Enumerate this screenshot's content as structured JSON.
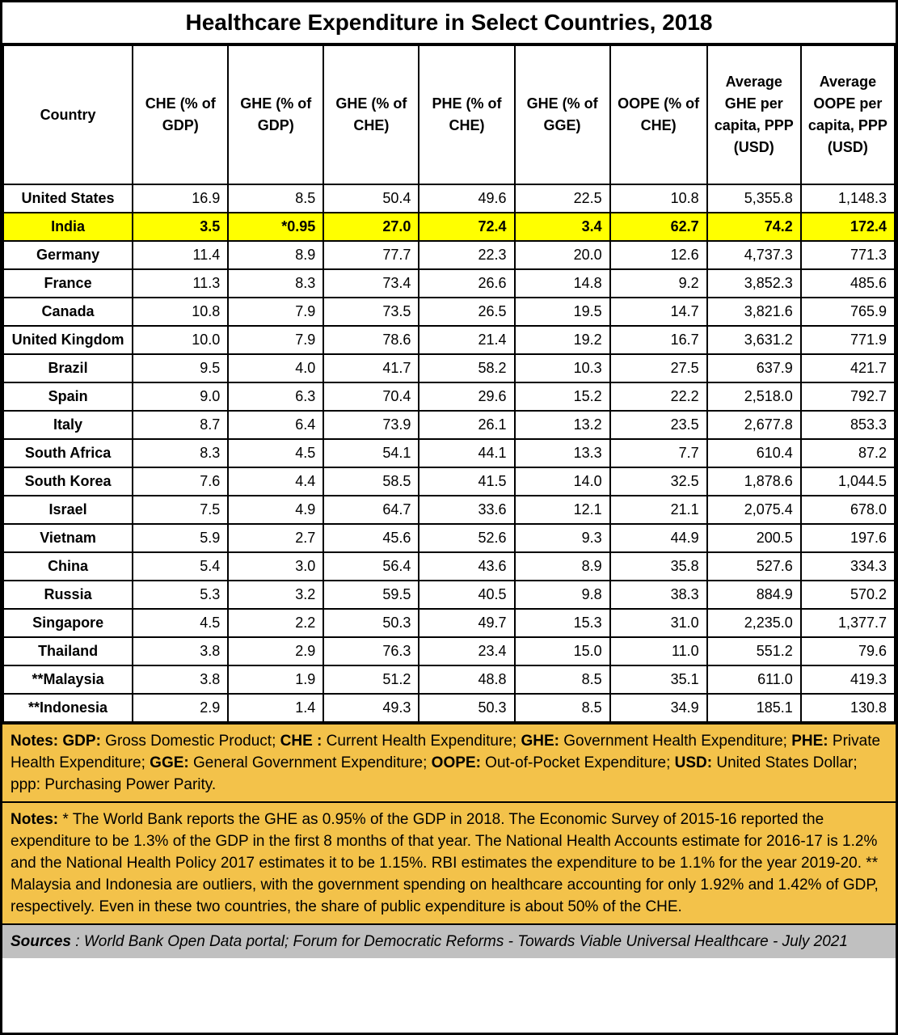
{
  "title": "Healthcare Expenditure in Select Countries, 2018",
  "colors": {
    "highlight_bg": "#FFFF00",
    "notes_bg": "#F3C24A",
    "sources_bg": "#C0C0C0",
    "border": "#000000"
  },
  "chart_data": {
    "type": "table",
    "title": "Healthcare Expenditure in Select Countries, 2018",
    "columns": [
      "Country",
      "CHE (% of GDP)",
      "GHE (% of GDP)",
      "GHE (% of CHE)",
      "PHE (% of CHE)",
      "GHE (% of GGE)",
      "OOPE (% of CHE)",
      "Average GHE per capita, PPP (USD)",
      "Average OOPE per capita, PPP (USD)"
    ],
    "rows": [
      {
        "country": "United States",
        "highlight": false,
        "values": [
          "16.9",
          "8.5",
          "50.4",
          "49.6",
          "22.5",
          "10.8",
          "5,355.8",
          "1,148.3"
        ]
      },
      {
        "country": "India",
        "highlight": true,
        "values": [
          "3.5",
          "*0.95",
          "27.0",
          "72.4",
          "3.4",
          "62.7",
          "74.2",
          "172.4"
        ]
      },
      {
        "country": "Germany",
        "highlight": false,
        "values": [
          "11.4",
          "8.9",
          "77.7",
          "22.3",
          "20.0",
          "12.6",
          "4,737.3",
          "771.3"
        ]
      },
      {
        "country": "France",
        "highlight": false,
        "values": [
          "11.3",
          "8.3",
          "73.4",
          "26.6",
          "14.8",
          "9.2",
          "3,852.3",
          "485.6"
        ]
      },
      {
        "country": "Canada",
        "highlight": false,
        "values": [
          "10.8",
          "7.9",
          "73.5",
          "26.5",
          "19.5",
          "14.7",
          "3,821.6",
          "765.9"
        ]
      },
      {
        "country": "United Kingdom",
        "highlight": false,
        "values": [
          "10.0",
          "7.9",
          "78.6",
          "21.4",
          "19.2",
          "16.7",
          "3,631.2",
          "771.9"
        ]
      },
      {
        "country": "Brazil",
        "highlight": false,
        "values": [
          "9.5",
          "4.0",
          "41.7",
          "58.2",
          "10.3",
          "27.5",
          "637.9",
          "421.7"
        ]
      },
      {
        "country": "Spain",
        "highlight": false,
        "values": [
          "9.0",
          "6.3",
          "70.4",
          "29.6",
          "15.2",
          "22.2",
          "2,518.0",
          "792.7"
        ]
      },
      {
        "country": "Italy",
        "highlight": false,
        "values": [
          "8.7",
          "6.4",
          "73.9",
          "26.1",
          "13.2",
          "23.5",
          "2,677.8",
          "853.3"
        ]
      },
      {
        "country": "South Africa",
        "highlight": false,
        "values": [
          "8.3",
          "4.5",
          "54.1",
          "44.1",
          "13.3",
          "7.7",
          "610.4",
          "87.2"
        ]
      },
      {
        "country": "South Korea",
        "highlight": false,
        "values": [
          "7.6",
          "4.4",
          "58.5",
          "41.5",
          "14.0",
          "32.5",
          "1,878.6",
          "1,044.5"
        ]
      },
      {
        "country": "Israel",
        "highlight": false,
        "values": [
          "7.5",
          "4.9",
          "64.7",
          "33.6",
          "12.1",
          "21.1",
          "2,075.4",
          "678.0"
        ]
      },
      {
        "country": "Vietnam",
        "highlight": false,
        "values": [
          "5.9",
          "2.7",
          "45.6",
          "52.6",
          "9.3",
          "44.9",
          "200.5",
          "197.6"
        ]
      },
      {
        "country": "China",
        "highlight": false,
        "values": [
          "5.4",
          "3.0",
          "56.4",
          "43.6",
          "8.9",
          "35.8",
          "527.6",
          "334.3"
        ]
      },
      {
        "country": "Russia",
        "highlight": false,
        "values": [
          "5.3",
          "3.2",
          "59.5",
          "40.5",
          "9.8",
          "38.3",
          "884.9",
          "570.2"
        ]
      },
      {
        "country": "Singapore",
        "highlight": false,
        "values": [
          "4.5",
          "2.2",
          "50.3",
          "49.7",
          "15.3",
          "31.0",
          "2,235.0",
          "1,377.7"
        ]
      },
      {
        "country": "Thailand",
        "highlight": false,
        "values": [
          "3.8",
          "2.9",
          "76.3",
          "23.4",
          "15.0",
          "11.0",
          "551.2",
          "79.6"
        ]
      },
      {
        "country": "**Malaysia",
        "highlight": false,
        "values": [
          "3.8",
          "1.9",
          "51.2",
          "48.8",
          "8.5",
          "35.1",
          "611.0",
          "419.3"
        ]
      },
      {
        "country": "**Indonesia",
        "highlight": false,
        "values": [
          "2.9",
          "1.4",
          "49.3",
          "50.3",
          "8.5",
          "34.9",
          "185.1",
          "130.8"
        ]
      }
    ]
  },
  "notes_definitions": {
    "segments": [
      {
        "b": true,
        "t": "Notes: "
      },
      {
        "b": true,
        "t": "GDP:"
      },
      {
        "b": false,
        "t": " Gross Domestic Product; "
      },
      {
        "b": true,
        "t": "CHE :"
      },
      {
        "b": false,
        "t": " Current Health Expenditure; "
      },
      {
        "b": true,
        "t": "GHE:"
      },
      {
        "b": false,
        "t": " Government Health Expenditure; "
      },
      {
        "b": true,
        "t": "PHE:"
      },
      {
        "b": false,
        "t": " Private Health Expenditure; "
      },
      {
        "b": true,
        "t": "GGE:"
      },
      {
        "b": false,
        "t": " General Government Expenditure; "
      },
      {
        "b": true,
        "t": "OOPE:"
      },
      {
        "b": false,
        "t": " Out-of-Pocket Expenditure; "
      },
      {
        "b": true,
        "t": "USD:"
      },
      {
        "b": false,
        "t": " United States Dollar; ppp: Purchasing Power Parity."
      }
    ]
  },
  "notes_asterisks": {
    "segments": [
      {
        "b": true,
        "t": "Notes:"
      },
      {
        "b": false,
        "t": " * The World Bank reports the GHE as 0.95% of the GDP in 2018. The Economic Survey of 2015-16 reported the expenditure to be 1.3% of the GDP in the first 8 months of that year. The National Health Accounts estimate for 2016-17 is 1.2% and the National Health Policy 2017 estimates it to be 1.15%. RBI estimates the expenditure to be 1.1% for the year 2019-20. ** Malaysia and Indonesia are outliers, with the government spending on healthcare accounting for only 1.92% and 1.42% of GDP, respectively. Even in these two countries, the share of public expenditure is about 50% of the CHE."
      }
    ]
  },
  "sources": {
    "segments": [
      {
        "b": true,
        "t": "Sources"
      },
      {
        "b": false,
        "t": " : World Bank Open Data portal; Forum for Democratic Reforms - Towards Viable Universal Healthcare - July 2021"
      }
    ]
  }
}
